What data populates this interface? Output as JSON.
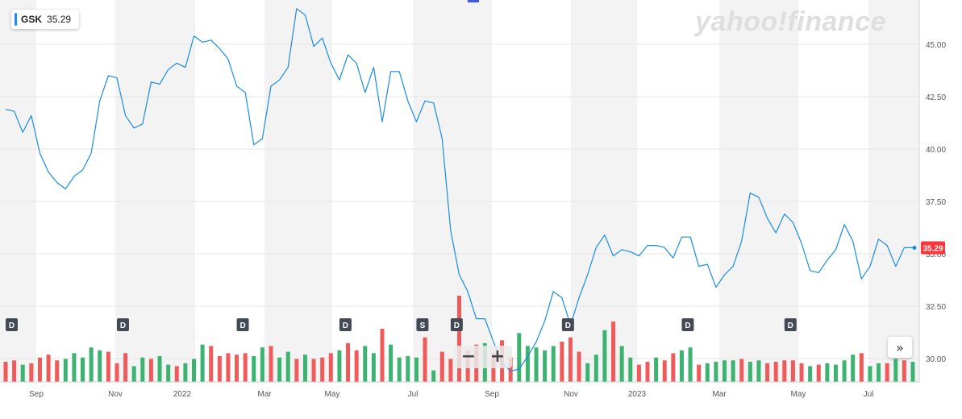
{
  "ticker": {
    "symbol": "GSK",
    "price": "35.29"
  },
  "brand": "yahoo!finance",
  "colors": {
    "line": "#1a8ce0",
    "up": "#3cb371",
    "down": "#f05a5a",
    "band": "#f3f3f3",
    "price_tag": "#ff333a",
    "marker": "#444a55"
  },
  "controls": {
    "zoom_out": "−",
    "zoom_in": "+",
    "scroll_right": "»"
  },
  "chart_data": {
    "type": "line",
    "ylim": [
      29,
      47
    ],
    "y_ticks": [
      "30.00",
      "32.50",
      "35.00",
      "37.50",
      "40.00",
      "42.50",
      "45.00"
    ],
    "x_labels": [
      "Sep",
      "Nov",
      "2022",
      "Mar",
      "May",
      "Jul",
      "Sep",
      "Nov",
      "2023",
      "Mar",
      "May",
      "Jul"
    ],
    "last_price": "35.29",
    "price": [
      41.9,
      41.8,
      40.8,
      41.6,
      39.8,
      38.9,
      38.4,
      38.1,
      38.7,
      39.0,
      39.8,
      42.3,
      43.5,
      43.4,
      41.6,
      41.0,
      41.2,
      43.2,
      43.1,
      43.8,
      44.1,
      43.9,
      45.4,
      45.1,
      45.2,
      44.8,
      44.3,
      43.0,
      42.7,
      40.2,
      40.5,
      43.0,
      43.3,
      43.9,
      46.7,
      46.4,
      44.9,
      45.3,
      44.1,
      43.3,
      44.5,
      44.1,
      42.7,
      43.9,
      41.3,
      43.7,
      43.7,
      42.3,
      41.3,
      42.3,
      42.2,
      40.5,
      36.1,
      34.0,
      33.2,
      31.9,
      31.9,
      30.8,
      29.8,
      29.4,
      29.5,
      30.1,
      30.8,
      31.8,
      33.2,
      32.9,
      31.6,
      32.9,
      34.0,
      35.3,
      35.9,
      34.9,
      35.2,
      35.1,
      34.9,
      35.4,
      35.4,
      35.3,
      34.8,
      35.8,
      35.8,
      34.4,
      34.5,
      33.4,
      34.0,
      34.4,
      35.6,
      37.9,
      37.7,
      36.7,
      36.0,
      36.9,
      36.5,
      35.5,
      34.2,
      34.1,
      34.7,
      35.2,
      36.4,
      35.6,
      33.8,
      34.4,
      35.7,
      35.4,
      34.4,
      35.3,
      35.29
    ],
    "volume": [
      0.28,
      0.3,
      0.24,
      0.26,
      0.34,
      0.38,
      0.3,
      0.32,
      0.4,
      0.34,
      0.48,
      0.44,
      0.42,
      0.26,
      0.4,
      0.22,
      0.34,
      0.32,
      0.36,
      0.24,
      0.22,
      0.26,
      0.32,
      0.52,
      0.5,
      0.36,
      0.4,
      0.38,
      0.4,
      0.36,
      0.48,
      0.5,
      0.34,
      0.42,
      0.32,
      0.38,
      0.32,
      0.34,
      0.4,
      0.44,
      0.54,
      0.44,
      0.5,
      0.4,
      0.74,
      0.52,
      0.34,
      0.36,
      0.34,
      0.62,
      0.16,
      0.42,
      0.32,
      1.2,
      0.44,
      0.52,
      0.54,
      0.4,
      0.58,
      0.34,
      0.68,
      0.5,
      0.48,
      0.44,
      0.5,
      0.56,
      0.62,
      0.42,
      0.26,
      0.38,
      0.72,
      0.84,
      0.5,
      0.34,
      0.24,
      0.28,
      0.34,
      0.3,
      0.4,
      0.44,
      0.48,
      0.24,
      0.26,
      0.28,
      0.3,
      0.3,
      0.32,
      0.28,
      0.3,
      0.26,
      0.28,
      0.3,
      0.3,
      0.26,
      0.22,
      0.24,
      0.26,
      0.24,
      0.3,
      0.38,
      0.4,
      0.22,
      0.26,
      0.26,
      0.32,
      0.3,
      0.28
    ],
    "volume_up": [
      0,
      0,
      1,
      0,
      0,
      0,
      0,
      1,
      1,
      1,
      1,
      1,
      0,
      0,
      0,
      1,
      1,
      0,
      1,
      1,
      0,
      1,
      1,
      1,
      0,
      0,
      0,
      0,
      0,
      1,
      1,
      0,
      1,
      1,
      0,
      1,
      0,
      0,
      0,
      1,
      0,
      0,
      1,
      1,
      0,
      1,
      1,
      1,
      1,
      0,
      1,
      0,
      0,
      0,
      0,
      0,
      1,
      0,
      0,
      0,
      1,
      1,
      1,
      1,
      1,
      0,
      0,
      0,
      1,
      1,
      1,
      0,
      1,
      1,
      0,
      0,
      1,
      0,
      0,
      1,
      1,
      0,
      1,
      1,
      1,
      1,
      0,
      1,
      1,
      0,
      0,
      0,
      0,
      0,
      1,
      0,
      1,
      1,
      1,
      1,
      0,
      1,
      1,
      0,
      1,
      0,
      1
    ],
    "events": [
      {
        "label": "D",
        "index": 0
      },
      {
        "label": "D",
        "index": 13
      },
      {
        "label": "D",
        "index": 27
      },
      {
        "label": "D",
        "index": 39
      },
      {
        "label": "S",
        "index": 48
      },
      {
        "label": "D",
        "index": 52
      },
      {
        "label": "D",
        "index": 65
      },
      {
        "label": "D",
        "index": 79
      },
      {
        "label": "D",
        "index": 91
      }
    ]
  }
}
